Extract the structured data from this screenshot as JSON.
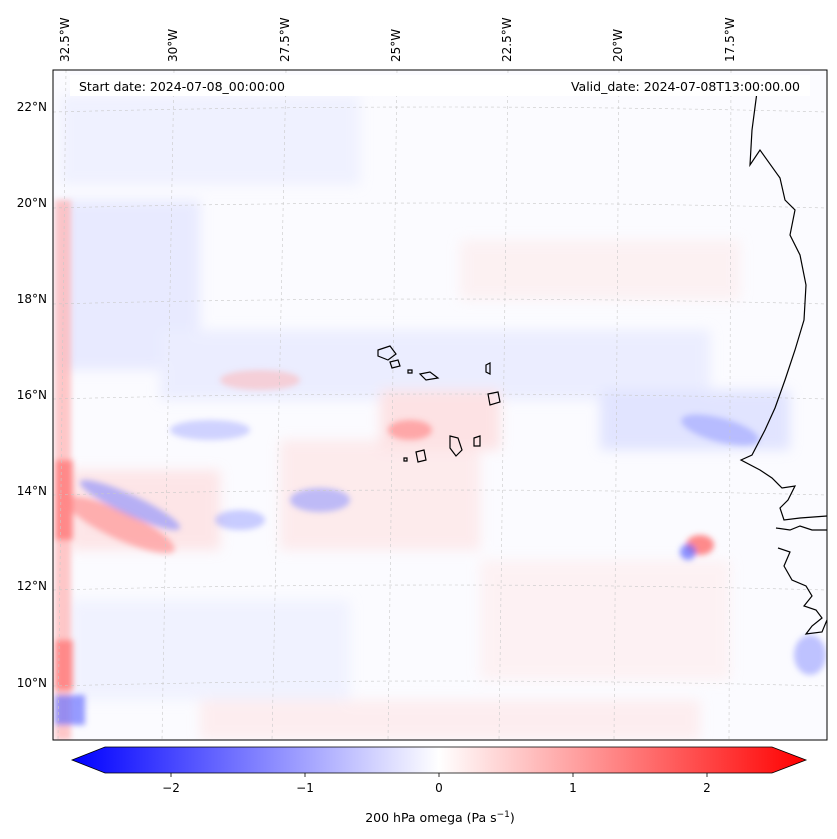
{
  "header": {
    "start_date": "Start date: 2024-07-08_00:00:00",
    "valid_date": "Valid_date: 2024-07-08T13:00:00.00"
  },
  "map": {
    "projection": "lambert-conformal",
    "longitude_labels": [
      "32.5°W",
      "30°W",
      "27.5°W",
      "25°W",
      "22.5°W",
      "20°W",
      "17.5°W"
    ],
    "latitude_labels": [
      "22°N",
      "20°N",
      "18°N",
      "16°N",
      "14°N",
      "12°N",
      "10°N"
    ],
    "gridlines": true,
    "coastlines": [
      "Senegal/Mauritania coast",
      "Cabo Verde islands",
      "Gambia/Guinea-Bissau coast"
    ]
  },
  "field": {
    "variable": "200 hPa omega",
    "units": "Pa s⁻¹",
    "colormap": "bwr",
    "range": [
      -2.5,
      2.5
    ],
    "colors": {
      "negative": "#0000ff",
      "zero": "#ffffff",
      "positive": "#ff0000"
    }
  },
  "colorbar": {
    "ticks": [
      "−2",
      "−1",
      "0",
      "1",
      "2"
    ],
    "label_main": "200 hPa omega (Pa s",
    "label_sup": "−1",
    "label_close": ")",
    "extend": "both"
  }
}
